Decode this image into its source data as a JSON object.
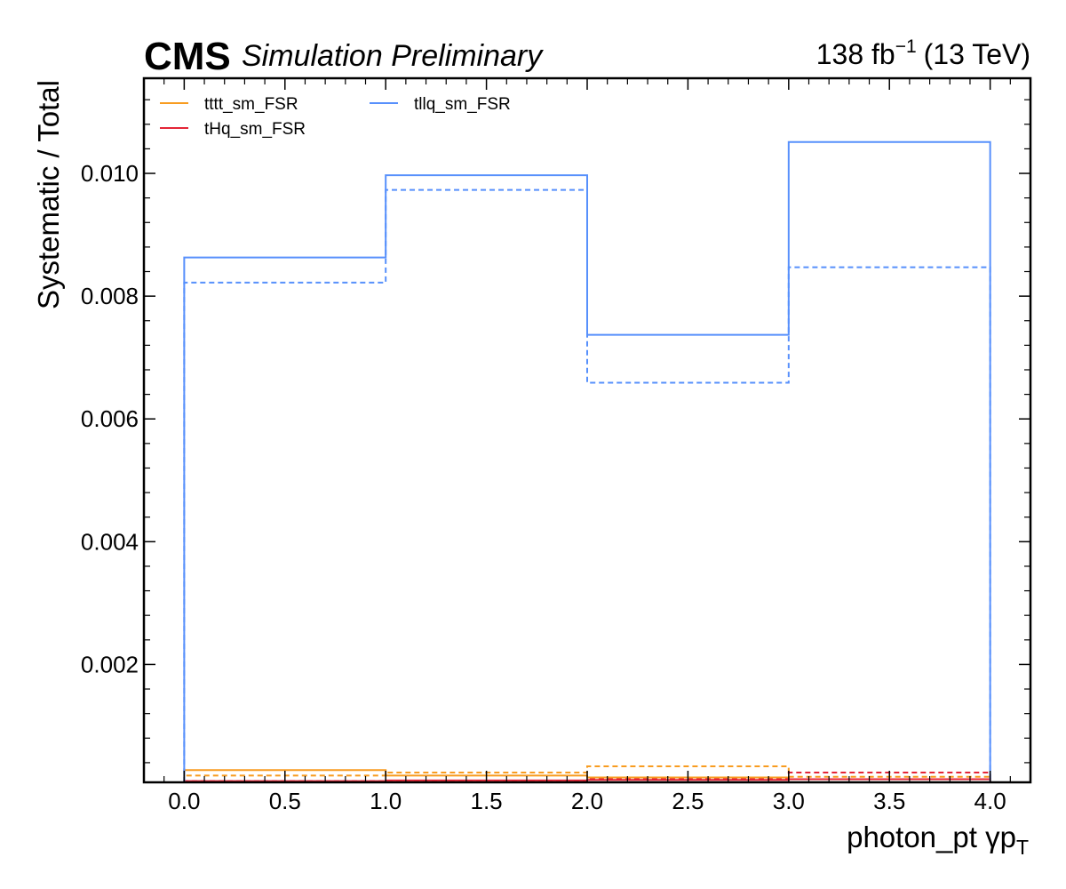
{
  "header": {
    "experiment": "CMS",
    "status": "Simulation Preliminary",
    "lumi_value": "138 fb",
    "lumi_exp": "−1",
    "lumi_energy": "(13 TeV)"
  },
  "chart_data": {
    "type": "line",
    "style": "step-histogram",
    "xlabel": "photon_pt   γp",
    "xlabel_sub": "T",
    "ylabel": "Systematic / Total",
    "xlim": [
      -0.2,
      4.2
    ],
    "ylim": [
      8e-05,
      0.01155
    ],
    "bin_edges": [
      0,
      1,
      2,
      3,
      4
    ],
    "x_ticks": [
      "0.0",
      "0.5",
      "1.0",
      "1.5",
      "2.0",
      "2.5",
      "3.0",
      "3.5",
      "4.0"
    ],
    "y_ticks": [
      "0.002",
      "0.004",
      "0.006",
      "0.008",
      "0.010"
    ],
    "legend_position": "top-left",
    "legend_columns": 2,
    "line_styles": {
      "up": "solid",
      "down": "dashed"
    },
    "series": [
      {
        "name": "tttt_sm_FSR",
        "color": "#f89c20",
        "up": [
          0.00028,
          0.00019,
          0.00016,
          0.00013
        ],
        "down": [
          0.00019,
          0.00024,
          0.00034,
          0.00017
        ]
      },
      {
        "name": "tHq_sm_FSR",
        "color": "#e42536",
        "up": [
          0.0001,
          0.00011,
          0.00012,
          0.00013
        ],
        "down": [
          0.0001,
          0.0001,
          0.00013,
          0.00024
        ]
      },
      {
        "name": "tllq_sm_FSR",
        "color": "#5790fc",
        "up": [
          0.00863,
          0.00997,
          0.00737,
          0.01051
        ],
        "down": [
          0.00822,
          0.00973,
          0.00659,
          0.00847
        ]
      }
    ]
  }
}
